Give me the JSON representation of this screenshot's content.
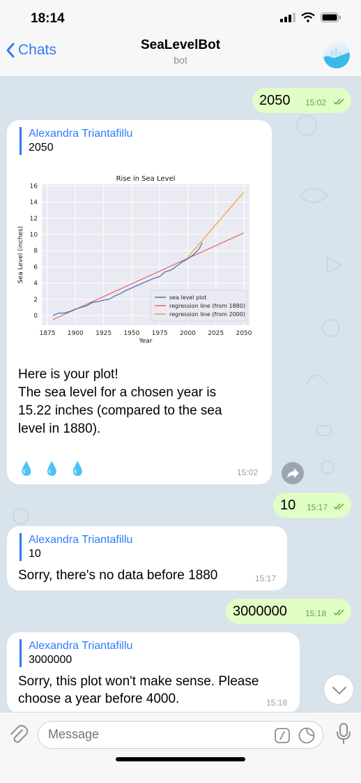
{
  "status": {
    "time": "18:14"
  },
  "header": {
    "back_label": "Chats",
    "title": "SeaLevelBot",
    "subtitle": "bot"
  },
  "messages": {
    "m1": {
      "text": "2050",
      "time": "15:02"
    },
    "m2": {
      "reply_name": "Alexandra Triantafillu",
      "reply_text": "2050",
      "line1": "Here is your plot!",
      "line2": "The sea level for a chosen year is",
      "line3": "15.22 inches (compared to the sea",
      "line4": "level in 1880).",
      "drops": "💧 💧 💧",
      "time": "15:02"
    },
    "m3": {
      "text": "10",
      "time": "15:17"
    },
    "m4": {
      "reply_name": "Alexandra Triantafillu",
      "reply_text": "10",
      "text": "Sorry, there's no data before 1880",
      "time": "15:17"
    },
    "m5": {
      "text": "3000000",
      "time": "15:18"
    },
    "m6": {
      "reply_name": "Alexandra Triantafillu",
      "reply_text": "3000000",
      "line1": "Sorry, this plot won't make sense. Please",
      "line2": "choose a year before 4000.",
      "time": "15:18"
    }
  },
  "input": {
    "placeholder": "Message"
  },
  "chart_data": {
    "type": "line",
    "title": "Rise in Sea Level",
    "xlabel": "Year",
    "ylabel": "Sea Level (inches)",
    "xlim": [
      1870,
      2055
    ],
    "ylim": [
      -1.2,
      16.2
    ],
    "xticks": [
      1875,
      1900,
      1925,
      1950,
      1975,
      2000,
      2025,
      2050
    ],
    "yticks": [
      0,
      2,
      4,
      6,
      8,
      10,
      12,
      14,
      16
    ],
    "legend": [
      "sea level plot",
      "regression line (from 1880)",
      "regression line (from 2000)"
    ],
    "colors": {
      "data": "#4c72b0",
      "reg1880": "#e8626a",
      "reg2000": "#f0a030"
    },
    "series": [
      {
        "name": "sea level plot",
        "x": [
          1880,
          1885,
          1890,
          1895,
          1900,
          1905,
          1910,
          1915,
          1920,
          1925,
          1930,
          1935,
          1940,
          1945,
          1950,
          1955,
          1960,
          1965,
          1970,
          1975,
          1980,
          1985,
          1990,
          1995,
          2000,
          2005,
          2010,
          2013
        ],
        "y": [
          0,
          0.3,
          0.3,
          0.5,
          0.8,
          1.0,
          1.2,
          1.6,
          1.7,
          1.9,
          2.0,
          2.4,
          2.7,
          3.1,
          3.4,
          3.7,
          4.0,
          4.3,
          4.6,
          4.8,
          5.4,
          5.6,
          6.1,
          6.6,
          7.0,
          7.5,
          8.2,
          9.0
        ]
      },
      {
        "name": "regression line (from 1880)",
        "x": [
          1880,
          2050
        ],
        "y": [
          -0.5,
          10.2
        ]
      },
      {
        "name": "regression line (from 2000)",
        "x": [
          2000,
          2050
        ],
        "y": [
          7.2,
          15.22
        ]
      }
    ]
  }
}
